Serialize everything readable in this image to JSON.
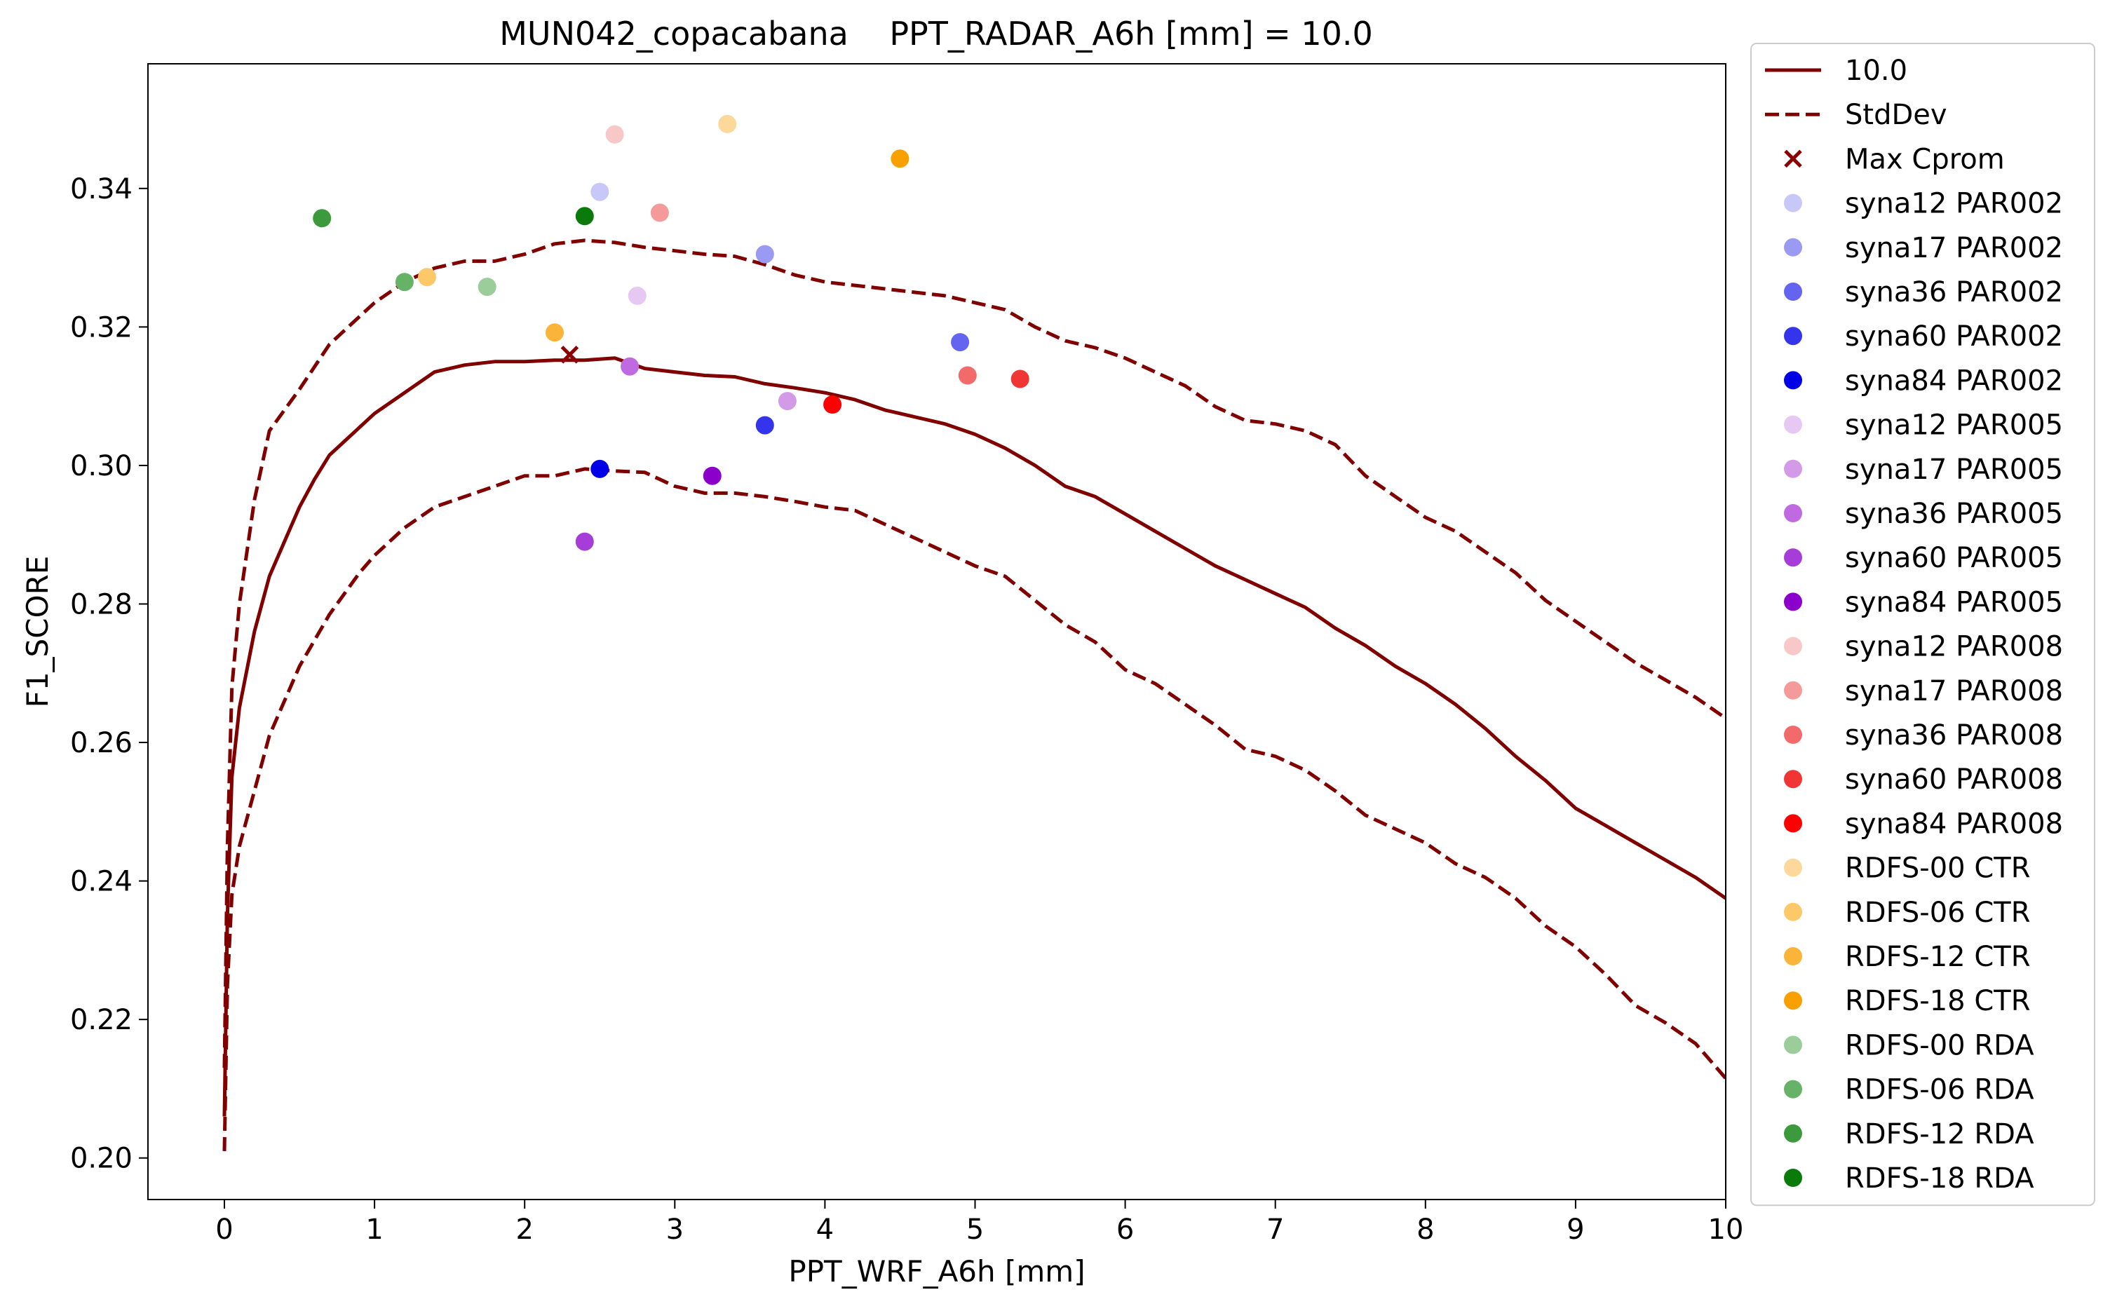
{
  "chart_data": {
    "type": "line",
    "title": "MUN042_copacabana    PPT_RADAR_A6h [mm] = 10.0",
    "xlabel": "PPT_WRF_A6h [mm]",
    "ylabel": "F1_SCORE",
    "xlim": [
      -0.5,
      10
    ],
    "ylim": [
      0.194,
      0.358
    ],
    "xticks": [
      0,
      1,
      2,
      3,
      4,
      5,
      6,
      7,
      8,
      9,
      10
    ],
    "yticks": [
      0.2,
      0.22,
      0.24,
      0.26,
      0.28,
      0.3,
      0.32,
      0.34
    ],
    "ytick_labels": [
      "0.20",
      "0.22",
      "0.24",
      "0.26",
      "0.28",
      "0.30",
      "0.32",
      "0.34"
    ],
    "legend_position": "outside-right",
    "grid": false,
    "lines": [
      {
        "name": "10.0",
        "style": "solid",
        "color": "#800000",
        "points": [
          [
            0,
            0.206
          ],
          [
            0.02,
            0.235
          ],
          [
            0.05,
            0.255
          ],
          [
            0.1,
            0.265
          ],
          [
            0.2,
            0.276
          ],
          [
            0.3,
            0.284
          ],
          [
            0.4,
            0.289
          ],
          [
            0.5,
            0.294
          ],
          [
            0.6,
            0.298
          ],
          [
            0.7,
            0.3015
          ],
          [
            0.8,
            0.3035
          ],
          [
            0.9,
            0.3055
          ],
          [
            1.0,
            0.3075
          ],
          [
            1.2,
            0.3105
          ],
          [
            1.4,
            0.3135
          ],
          [
            1.6,
            0.3145
          ],
          [
            1.8,
            0.315
          ],
          [
            2.0,
            0.315
          ],
          [
            2.2,
            0.3152
          ],
          [
            2.4,
            0.3152
          ],
          [
            2.6,
            0.3155
          ],
          [
            2.8,
            0.314
          ],
          [
            3.0,
            0.3135
          ],
          [
            3.2,
            0.313
          ],
          [
            3.4,
            0.3128
          ],
          [
            3.6,
            0.3118
          ],
          [
            3.8,
            0.3112
          ],
          [
            4.0,
            0.3105
          ],
          [
            4.2,
            0.3095
          ],
          [
            4.4,
            0.308
          ],
          [
            4.6,
            0.307
          ],
          [
            4.8,
            0.306
          ],
          [
            5.0,
            0.3045
          ],
          [
            5.2,
            0.3025
          ],
          [
            5.4,
            0.3
          ],
          [
            5.6,
            0.297
          ],
          [
            5.8,
            0.2955
          ],
          [
            6.0,
            0.293
          ],
          [
            6.2,
            0.2905
          ],
          [
            6.4,
            0.288
          ],
          [
            6.6,
            0.2855
          ],
          [
            6.8,
            0.2835
          ],
          [
            7.0,
            0.2815
          ],
          [
            7.2,
            0.2795
          ],
          [
            7.4,
            0.2765
          ],
          [
            7.6,
            0.274
          ],
          [
            7.8,
            0.271
          ],
          [
            8.0,
            0.2685
          ],
          [
            8.2,
            0.2655
          ],
          [
            8.4,
            0.262
          ],
          [
            8.6,
            0.258
          ],
          [
            8.8,
            0.2545
          ],
          [
            9.0,
            0.2505
          ],
          [
            9.2,
            0.248
          ],
          [
            9.4,
            0.2455
          ],
          [
            9.6,
            0.243
          ],
          [
            9.8,
            0.2405
          ],
          [
            10.0,
            0.2375
          ]
        ]
      },
      {
        "name": "StdDev",
        "style": "dashed",
        "color": "#800000",
        "points": [
          [
            0,
            0.213
          ],
          [
            0.02,
            0.245
          ],
          [
            0.05,
            0.268
          ],
          [
            0.1,
            0.28
          ],
          [
            0.2,
            0.295
          ],
          [
            0.3,
            0.305
          ],
          [
            0.5,
            0.311
          ],
          [
            0.7,
            0.3175
          ],
          [
            0.9,
            0.3215
          ],
          [
            1.0,
            0.3235
          ],
          [
            1.2,
            0.3265
          ],
          [
            1.4,
            0.3285
          ],
          [
            1.6,
            0.3295
          ],
          [
            1.8,
            0.3295
          ],
          [
            2.0,
            0.3305
          ],
          [
            2.2,
            0.332
          ],
          [
            2.4,
            0.3325
          ],
          [
            2.6,
            0.3322
          ],
          [
            2.8,
            0.3315
          ],
          [
            3.0,
            0.331
          ],
          [
            3.2,
            0.3305
          ],
          [
            3.4,
            0.3302
          ],
          [
            3.6,
            0.329
          ],
          [
            3.8,
            0.3275
          ],
          [
            4.0,
            0.3265
          ],
          [
            4.2,
            0.326
          ],
          [
            4.4,
            0.3255
          ],
          [
            4.6,
            0.325
          ],
          [
            4.8,
            0.3245
          ],
          [
            5.0,
            0.3235
          ],
          [
            5.2,
            0.3225
          ],
          [
            5.4,
            0.32
          ],
          [
            5.6,
            0.318
          ],
          [
            5.8,
            0.317
          ],
          [
            6.0,
            0.3155
          ],
          [
            6.2,
            0.3135
          ],
          [
            6.4,
            0.3115
          ],
          [
            6.6,
            0.3085
          ],
          [
            6.8,
            0.3065
          ],
          [
            7.0,
            0.306
          ],
          [
            7.2,
            0.305
          ],
          [
            7.4,
            0.303
          ],
          [
            7.6,
            0.2985
          ],
          [
            7.8,
            0.2955
          ],
          [
            8.0,
            0.2925
          ],
          [
            8.2,
            0.2905
          ],
          [
            8.4,
            0.2875
          ],
          [
            8.6,
            0.2845
          ],
          [
            8.8,
            0.2805
          ],
          [
            9.0,
            0.2775
          ],
          [
            9.2,
            0.2745
          ],
          [
            9.4,
            0.2715
          ],
          [
            9.6,
            0.269
          ],
          [
            9.8,
            0.2665
          ],
          [
            10.0,
            0.2635
          ]
        ]
      },
      {
        "name": "",
        "style": "dashed",
        "color": "#800000",
        "points": [
          [
            0,
            0.201
          ],
          [
            0.02,
            0.225
          ],
          [
            0.05,
            0.238
          ],
          [
            0.1,
            0.245
          ],
          [
            0.2,
            0.253
          ],
          [
            0.3,
            0.261
          ],
          [
            0.5,
            0.271
          ],
          [
            0.7,
            0.2785
          ],
          [
            0.9,
            0.2845
          ],
          [
            1.0,
            0.287
          ],
          [
            1.2,
            0.291
          ],
          [
            1.4,
            0.294
          ],
          [
            1.6,
            0.2955
          ],
          [
            1.8,
            0.297
          ],
          [
            2.0,
            0.2985
          ],
          [
            2.2,
            0.2985
          ],
          [
            2.4,
            0.2995
          ],
          [
            2.6,
            0.2992
          ],
          [
            2.8,
            0.299
          ],
          [
            3.0,
            0.297
          ],
          [
            3.2,
            0.296
          ],
          [
            3.4,
            0.296
          ],
          [
            3.6,
            0.2955
          ],
          [
            3.8,
            0.2948
          ],
          [
            4.0,
            0.294
          ],
          [
            4.2,
            0.2935
          ],
          [
            4.4,
            0.2915
          ],
          [
            4.6,
            0.2895
          ],
          [
            4.8,
            0.2875
          ],
          [
            5.0,
            0.2855
          ],
          [
            5.2,
            0.284
          ],
          [
            5.4,
            0.2805
          ],
          [
            5.6,
            0.277
          ],
          [
            5.8,
            0.2745
          ],
          [
            6.0,
            0.2705
          ],
          [
            6.2,
            0.2685
          ],
          [
            6.4,
            0.2655
          ],
          [
            6.6,
            0.2625
          ],
          [
            6.8,
            0.259
          ],
          [
            7.0,
            0.258
          ],
          [
            7.2,
            0.256
          ],
          [
            7.4,
            0.253
          ],
          [
            7.6,
            0.2495
          ],
          [
            7.8,
            0.2475
          ],
          [
            8.0,
            0.2455
          ],
          [
            8.2,
            0.2425
          ],
          [
            8.4,
            0.2405
          ],
          [
            8.6,
            0.2375
          ],
          [
            8.8,
            0.2335
          ],
          [
            9.0,
            0.2305
          ],
          [
            9.2,
            0.2265
          ],
          [
            9.4,
            0.222
          ],
          [
            9.6,
            0.2195
          ],
          [
            9.8,
            0.2165
          ],
          [
            10.0,
            0.2115
          ]
        ]
      }
    ],
    "max_marker": {
      "name": "Max Cprom",
      "x": 2.3,
      "y": 0.316,
      "color": "#8b0000"
    },
    "points": [
      {
        "name": "syna12 PAR002",
        "x": 2.5,
        "y": 0.3395,
        "color": "#c8c8f8"
      },
      {
        "name": "syna17 PAR002",
        "x": 3.6,
        "y": 0.3305,
        "color": "#9a9af2"
      },
      {
        "name": "syna36 PAR002",
        "x": 4.9,
        "y": 0.3178,
        "color": "#6464f0"
      },
      {
        "name": "syna60 PAR002",
        "x": 3.6,
        "y": 0.3058,
        "color": "#3434ec"
      },
      {
        "name": "syna84 PAR002",
        "x": 2.5,
        "y": 0.2995,
        "color": "#0000e6"
      },
      {
        "name": "syna12 PAR005",
        "x": 2.75,
        "y": 0.3245,
        "color": "#e6c8f2"
      },
      {
        "name": "syna17 PAR005",
        "x": 3.75,
        "y": 0.3093,
        "color": "#d39ae8"
      },
      {
        "name": "syna36 PAR005",
        "x": 2.7,
        "y": 0.3143,
        "color": "#bf6ae0"
      },
      {
        "name": "syna60 PAR005",
        "x": 2.4,
        "y": 0.289,
        "color": "#a63dd9"
      },
      {
        "name": "syna84 PAR005",
        "x": 3.25,
        "y": 0.2985,
        "color": "#8c00cc"
      },
      {
        "name": "syna12 PAR008",
        "x": 2.6,
        "y": 0.3478,
        "color": "#f8c8c8"
      },
      {
        "name": "syna17 PAR008",
        "x": 2.9,
        "y": 0.3365,
        "color": "#f59a9a"
      },
      {
        "name": "syna36 PAR008",
        "x": 4.95,
        "y": 0.313,
        "color": "#f26a6a"
      },
      {
        "name": "syna60 PAR008",
        "x": 5.3,
        "y": 0.3125,
        "color": "#f03535"
      },
      {
        "name": "syna84 PAR008",
        "x": 4.05,
        "y": 0.3088,
        "color": "#ff0000"
      },
      {
        "name": "RDFS-00 CTR",
        "x": 3.35,
        "y": 0.3493,
        "color": "#fcd89a"
      },
      {
        "name": "RDFS-06 CTR",
        "x": 1.35,
        "y": 0.3272,
        "color": "#fdc868"
      },
      {
        "name": "RDFS-12 CTR",
        "x": 2.2,
        "y": 0.3192,
        "color": "#fbb43a"
      },
      {
        "name": "RDFS-18 CTR",
        "x": 4.5,
        "y": 0.3443,
        "color": "#f8a000"
      },
      {
        "name": "RDFS-00 RDA",
        "x": 1.75,
        "y": 0.3258,
        "color": "#9acd9a"
      },
      {
        "name": "RDFS-06 RDA",
        "x": 1.2,
        "y": 0.3265,
        "color": "#66b266"
      },
      {
        "name": "RDFS-12 RDA",
        "x": 0.65,
        "y": 0.3357,
        "color": "#3c9a3c"
      },
      {
        "name": "RDFS-18 RDA",
        "x": 2.4,
        "y": 0.336,
        "color": "#0a7a0a"
      }
    ]
  },
  "legend": {
    "items": [
      {
        "label": "10.0",
        "kind": "line-solid",
        "color": "#800000"
      },
      {
        "label": "StdDev",
        "kind": "line-dashed",
        "color": "#800000"
      },
      {
        "label": "Max Cprom",
        "kind": "cross",
        "color": "#8b0000"
      },
      {
        "label": "syna12 PAR002",
        "kind": "dot",
        "color": "#c8c8f8"
      },
      {
        "label": "syna17 PAR002",
        "kind": "dot",
        "color": "#9a9af2"
      },
      {
        "label": "syna36 PAR002",
        "kind": "dot",
        "color": "#6464f0"
      },
      {
        "label": "syna60 PAR002",
        "kind": "dot",
        "color": "#3434ec"
      },
      {
        "label": "syna84 PAR002",
        "kind": "dot",
        "color": "#0000e6"
      },
      {
        "label": "syna12 PAR005",
        "kind": "dot",
        "color": "#e6c8f2"
      },
      {
        "label": "syna17 PAR005",
        "kind": "dot",
        "color": "#d39ae8"
      },
      {
        "label": "syna36 PAR005",
        "kind": "dot",
        "color": "#bf6ae0"
      },
      {
        "label": "syna60 PAR005",
        "kind": "dot",
        "color": "#a63dd9"
      },
      {
        "label": "syna84 PAR005",
        "kind": "dot",
        "color": "#8c00cc"
      },
      {
        "label": "syna12 PAR008",
        "kind": "dot",
        "color": "#f8c8c8"
      },
      {
        "label": "syna17 PAR008",
        "kind": "dot",
        "color": "#f59a9a"
      },
      {
        "label": "syna36 PAR008",
        "kind": "dot",
        "color": "#f26a6a"
      },
      {
        "label": "syna60 PAR008",
        "kind": "dot",
        "color": "#f03535"
      },
      {
        "label": "syna84 PAR008",
        "kind": "dot",
        "color": "#ff0000"
      },
      {
        "label": " RDFS-00 CTR",
        "kind": "dot",
        "color": "#fcd89a"
      },
      {
        "label": " RDFS-06 CTR",
        "kind": "dot",
        "color": "#fdc868"
      },
      {
        "label": " RDFS-12 CTR",
        "kind": "dot",
        "color": "#fbb43a"
      },
      {
        "label": " RDFS-18 CTR",
        "kind": "dot",
        "color": "#f8a000"
      },
      {
        "label": " RDFS-00 RDA",
        "kind": "dot",
        "color": "#9acd9a"
      },
      {
        "label": " RDFS-06 RDA",
        "kind": "dot",
        "color": "#66b266"
      },
      {
        "label": " RDFS-12 RDA",
        "kind": "dot",
        "color": "#3c9a3c"
      },
      {
        "label": " RDFS-18 RDA",
        "kind": "dot",
        "color": "#0a7a0a"
      }
    ]
  }
}
